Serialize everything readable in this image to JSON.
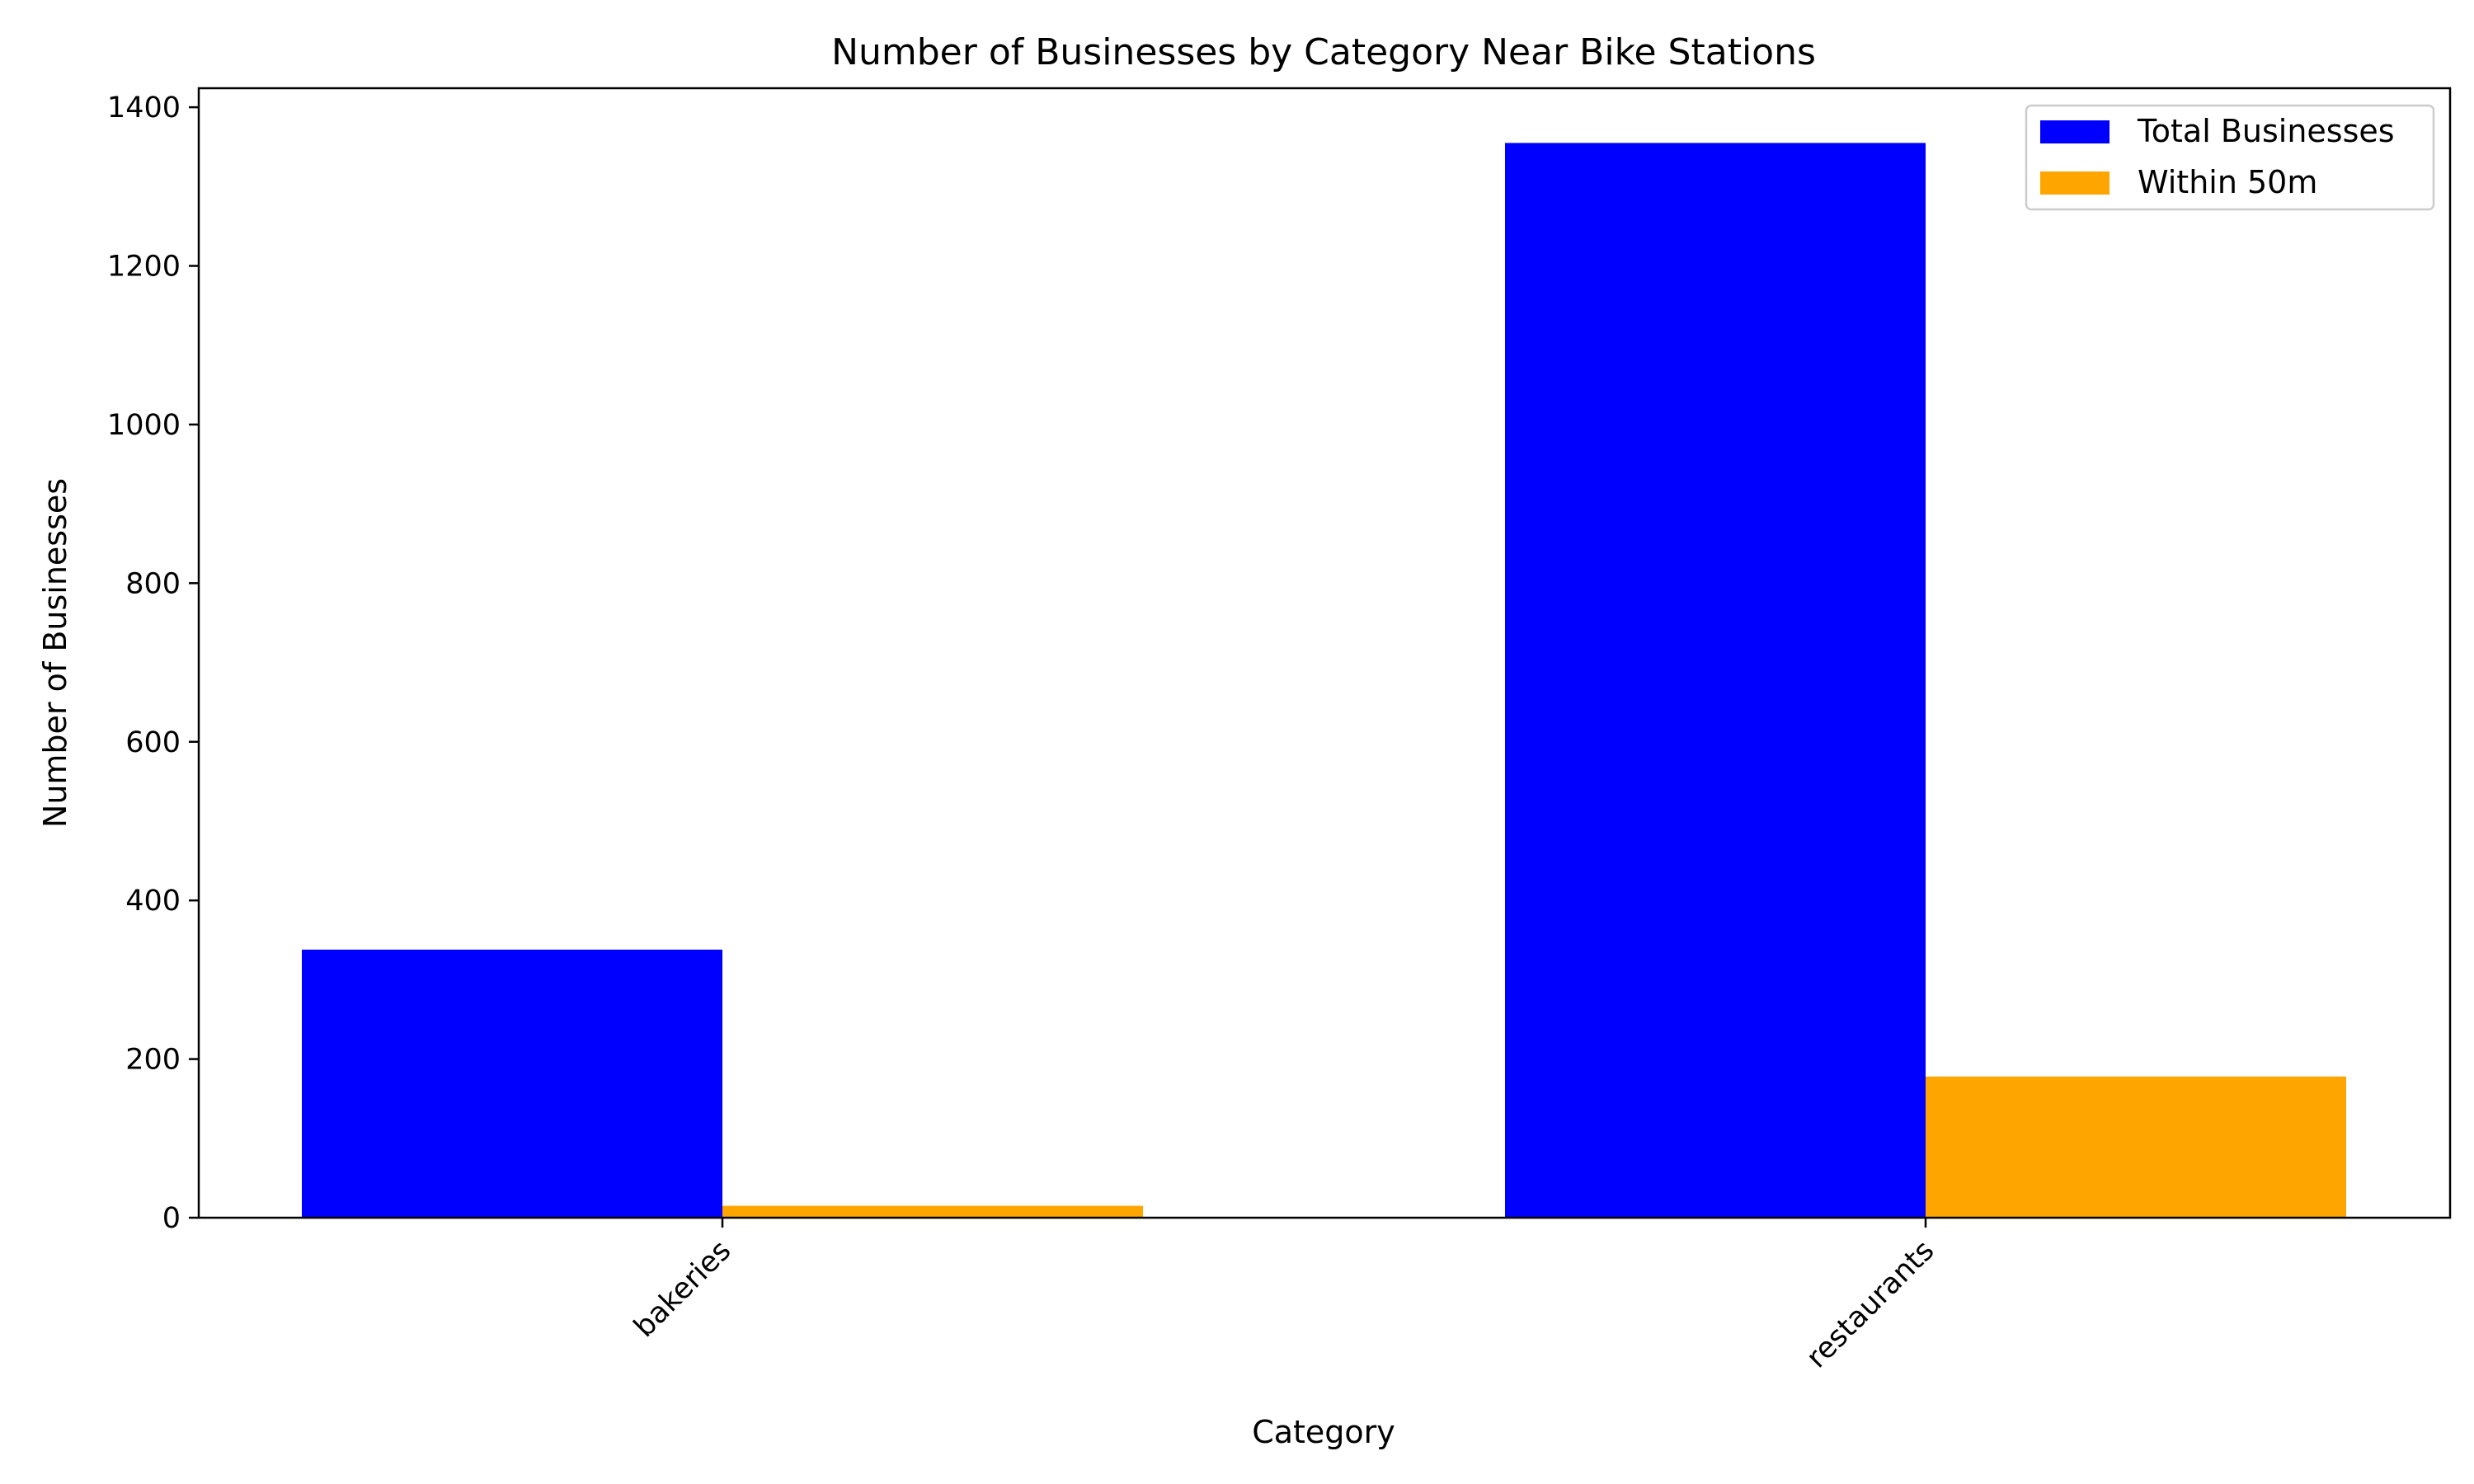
{
  "chart_data": {
    "type": "bar",
    "title": "Number of Businesses by Category Near Bike Stations",
    "xlabel": "Category",
    "ylabel": "Number of Businesses",
    "categories": [
      "bakeries",
      "restaurants"
    ],
    "series": [
      {
        "name": "Total Businesses",
        "color": "#0000ff",
        "values": [
          338,
          1355
        ]
      },
      {
        "name": "Within 50m",
        "color": "#ffa500",
        "values": [
          15,
          178
        ]
      }
    ],
    "ylim": [
      0,
      1424
    ],
    "yticks": [
      0,
      200,
      400,
      600,
      800,
      1000,
      1200,
      1400
    ],
    "grid": false,
    "legend_position": "top-right",
    "xtick_rotation_deg": 45
  }
}
